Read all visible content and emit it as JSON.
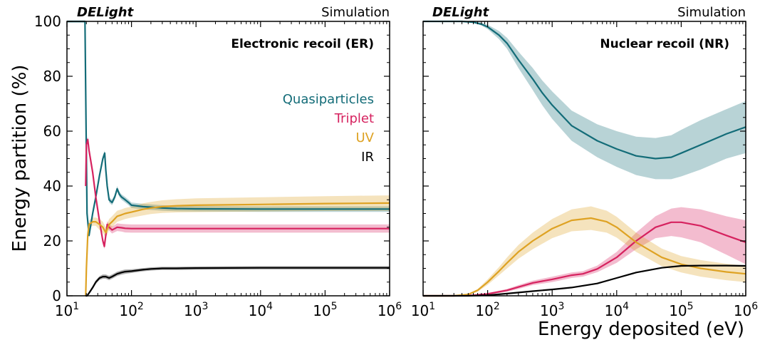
{
  "ylabel": "Energy partition (%)",
  "xlabel": "Energy deposited (eV)",
  "colors": {
    "quasiparticles": "#136c78",
    "triplet": "#d6225f",
    "uv": "#dea223",
    "ir": "#000000"
  },
  "panels": [
    {
      "brand": "DELight",
      "tag": "Simulation",
      "heading": "Electronic recoil (ER)"
    },
    {
      "brand": "DELight",
      "tag": "Simulation",
      "heading": "Nuclear recoil (NR)"
    }
  ],
  "legend": [
    {
      "label": "Quasiparticles",
      "color_key": "quasiparticles"
    },
    {
      "label": "Triplet",
      "color_key": "triplet"
    },
    {
      "label": "UV",
      "color_key": "uv"
    },
    {
      "label": "IR",
      "color_key": "ir"
    }
  ],
  "chart_data": [
    {
      "type": "line",
      "title": "Electronic recoil (ER)",
      "xscale": "log",
      "xlim": [
        10,
        1000000
      ],
      "ylim": [
        0,
        100
      ],
      "xticks": [
        {
          "v": 10,
          "base": "10",
          "exp": "1"
        },
        {
          "v": 100,
          "base": "10",
          "exp": "2"
        },
        {
          "v": 1000,
          "base": "10",
          "exp": "3"
        },
        {
          "v": 10000,
          "base": "10",
          "exp": "4"
        },
        {
          "v": 100000,
          "base": "10",
          "exp": "5"
        },
        {
          "v": 1000000,
          "base": "10",
          "exp": "6"
        }
      ],
      "yticks": [
        0,
        20,
        40,
        60,
        80,
        100
      ],
      "series": [
        {
          "name": "Quasiparticles",
          "color_key": "quasiparticles",
          "x": [
            10,
            19,
            19.8,
            20.5,
            22,
            25,
            28,
            32,
            36,
            38.5,
            40,
            42,
            45,
            50,
            55,
            60,
            65,
            70,
            80,
            90,
            100,
            150,
            200,
            300,
            500,
            1000,
            10000,
            100000,
            1000000
          ],
          "y": [
            100,
            100,
            60,
            30,
            22,
            30,
            36,
            44,
            50,
            52,
            46,
            40,
            35,
            34,
            36,
            39,
            37,
            36,
            35,
            34,
            33,
            32.5,
            32.3,
            32,
            31.8,
            31.7,
            31.6,
            31.6,
            31.6
          ],
          "band": [
            0.5,
            0.5,
            0.5,
            0.5,
            1,
            1,
            1,
            1,
            1,
            1,
            1,
            1,
            1,
            1,
            1,
            1,
            1,
            1,
            1,
            1,
            1,
            1,
            1,
            1,
            1,
            1,
            1,
            1,
            1
          ]
        },
        {
          "name": "Triplet",
          "color_key": "triplet",
          "x": [
            19.5,
            20,
            21,
            22,
            25,
            28,
            32,
            36,
            38,
            40,
            42,
            45,
            50,
            55,
            60,
            70,
            80,
            100,
            200,
            1000,
            10000,
            100000,
            1000000
          ],
          "y": [
            40,
            55,
            57,
            53,
            45,
            36,
            27,
            20,
            18,
            22,
            26,
            25,
            24,
            24.5,
            25,
            24.8,
            24.6,
            24.5,
            24.5,
            24.5,
            24.5,
            24.5,
            24.5
          ],
          "band": [
            1,
            1,
            1,
            1,
            1,
            1,
            1,
            1,
            1,
            1,
            1.2,
            1.2,
            1.3,
            1.3,
            1.4,
            1.4,
            1.5,
            1.5,
            1.5,
            1.5,
            1.5,
            1.5,
            1.5
          ]
        },
        {
          "name": "UV",
          "color_key": "uv",
          "x": [
            19.5,
            20,
            21,
            22,
            25,
            28,
            32,
            36,
            40,
            45,
            50,
            60,
            70,
            80,
            100,
            150,
            200,
            300,
            500,
            1000,
            10000,
            100000,
            1000000
          ],
          "y": [
            0,
            10,
            22,
            26,
            27,
            27,
            26,
            25,
            23,
            26,
            27,
            29,
            29.5,
            30,
            30.5,
            31.5,
            32,
            32.5,
            32.8,
            33,
            33.3,
            33.6,
            33.8
          ],
          "band": [
            1,
            1.5,
            1.5,
            1.5,
            1.5,
            1.5,
            2,
            2,
            2,
            2,
            2,
            2,
            2,
            2,
            2,
            2.2,
            2.2,
            2.3,
            2.4,
            2.5,
            2.6,
            2.7,
            2.8
          ]
        },
        {
          "name": "IR",
          "color_key": "ir",
          "x": [
            19.5,
            20.5,
            22,
            25,
            28,
            32,
            36,
            40,
            45,
            50,
            60,
            70,
            80,
            100,
            150,
            200,
            300,
            500,
            1000,
            10000,
            100000,
            1000000
          ],
          "y": [
            0,
            0,
            1,
            3,
            5,
            6.5,
            7,
            7,
            6.5,
            7,
            8,
            8.5,
            8.8,
            9,
            9.5,
            9.8,
            10,
            10,
            10.1,
            10.2,
            10.2,
            10.2
          ],
          "band": [
            0.3,
            0.3,
            0.5,
            0.6,
            0.7,
            0.7,
            0.8,
            0.8,
            0.8,
            0.8,
            0.8,
            0.8,
            0.8,
            0.7,
            0.6,
            0.6,
            0.6,
            0.6,
            0.6,
            0.6,
            0.6,
            0.6
          ]
        }
      ]
    },
    {
      "type": "line",
      "title": "Nuclear recoil (NR)",
      "xscale": "log",
      "xlim": [
        10,
        1000000
      ],
      "ylim": [
        0,
        100
      ],
      "xticks": [
        {
          "v": 10,
          "base": "10",
          "exp": "1"
        },
        {
          "v": 100,
          "base": "10",
          "exp": "2"
        },
        {
          "v": 1000,
          "base": "10",
          "exp": "3"
        },
        {
          "v": 10000,
          "base": "10",
          "exp": "4"
        },
        {
          "v": 100000,
          "base": "10",
          "exp": "5"
        },
        {
          "v": 1000000,
          "base": "10",
          "exp": "6"
        }
      ],
      "yticks": [
        0,
        20,
        40,
        60,
        80,
        100
      ],
      "series": [
        {
          "name": "Quasiparticles",
          "color_key": "quasiparticles",
          "x": [
            10,
            20,
            40,
            60,
            80,
            100,
            150,
            200,
            300,
            500,
            700,
            1000,
            2000,
            5000,
            10000,
            20000,
            40000,
            70000,
            100000,
            200000,
            500000,
            1000000
          ],
          "y": [
            100,
            100,
            100,
            99.7,
            99,
            98,
            95,
            92,
            86,
            79,
            74,
            69.5,
            62,
            56.5,
            53.5,
            51,
            50,
            50.5,
            52,
            55,
            59,
            61.5
          ],
          "band": [
            0,
            0,
            0,
            0.2,
            0.5,
            0.8,
            1.5,
            2,
            3,
            4,
            4.5,
            5,
            5.5,
            6,
            6.5,
            7,
            7.5,
            8,
            8.5,
            9,
            9,
            9.5
          ]
        },
        {
          "name": "Triplet",
          "color_key": "triplet",
          "x": [
            10,
            30,
            60,
            100,
            200,
            300,
            500,
            1000,
            2000,
            3000,
            5000,
            10000,
            20000,
            40000,
            70000,
            100000,
            200000,
            500000,
            1000000
          ],
          "y": [
            0,
            0,
            0.2,
            0.7,
            2,
            3.2,
            4.7,
            6,
            7.5,
            8,
            9.8,
            14,
            20,
            25,
            26.8,
            26.8,
            25.5,
            22,
            19.5
          ],
          "band": [
            0,
            0,
            0.1,
            0.3,
            0.5,
            0.7,
            0.8,
            1,
            1,
            1,
            1.2,
            2,
            3,
            4,
            5,
            5.5,
            6,
            7,
            8
          ]
        },
        {
          "name": "UV",
          "color_key": "uv",
          "x": [
            10,
            30,
            50,
            70,
            100,
            150,
            200,
            300,
            500,
            1000,
            2000,
            4000,
            7000,
            10000,
            20000,
            50000,
            100000,
            200000,
            500000,
            1000000
          ],
          "y": [
            0,
            0,
            0.5,
            2,
            5,
            9,
            12,
            16,
            20,
            24.5,
            27.5,
            28.3,
            27,
            25,
            19.5,
            14,
            11.5,
            10,
            8.7,
            8
          ],
          "band": [
            0,
            0,
            0.2,
            0.5,
            1,
            1.5,
            2,
            2.5,
            3,
            3.5,
            4,
            4.3,
            4,
            3.8,
            3.5,
            3.2,
            3,
            3,
            3,
            3
          ]
        },
        {
          "name": "IR",
          "color_key": "ir",
          "x": [
            10,
            50,
            100,
            200,
            500,
            1000,
            2000,
            5000,
            10000,
            20000,
            50000,
            100000,
            200000,
            500000,
            1000000
          ],
          "y": [
            0,
            0,
            0.2,
            0.8,
            1.7,
            2.3,
            3,
            4.5,
            6.5,
            8.5,
            10.2,
            10.9,
            11,
            11,
            10.9
          ],
          "band": [
            0,
            0,
            0,
            0,
            0,
            0,
            0,
            0,
            0,
            0,
            0,
            0,
            0,
            0,
            0
          ]
        }
      ]
    }
  ]
}
